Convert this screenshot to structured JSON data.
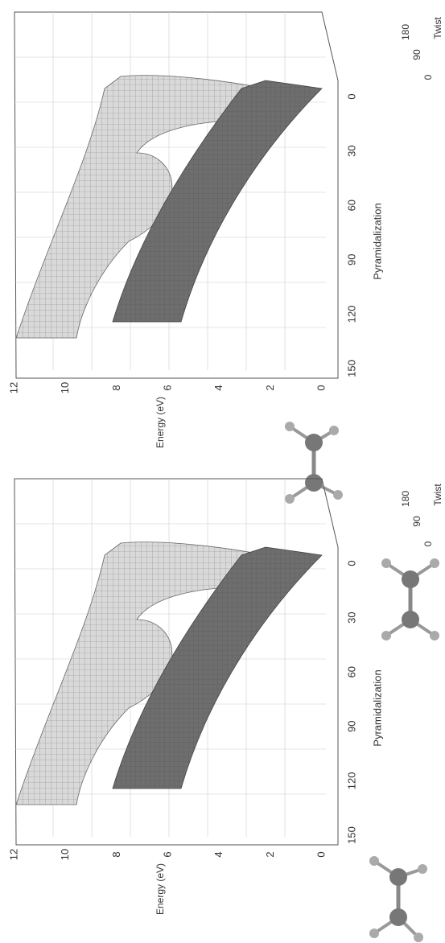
{
  "panels": [
    {
      "energy_axis": {
        "label": "Energy (eV)",
        "ticks": [
          "12",
          "10",
          "8",
          "6",
          "4",
          "2",
          "0"
        ]
      },
      "pyramidalization_axis": {
        "label": "Pyramidalization",
        "ticks": [
          "150",
          "120",
          "90",
          "60",
          "30",
          "0"
        ]
      },
      "twist_axis": {
        "label": "Twist",
        "ticks": [
          "180",
          "90",
          "0"
        ]
      }
    },
    {
      "energy_axis": {
        "label": "Energy (eV)",
        "ticks": [
          "12",
          "10",
          "8",
          "6",
          "4",
          "2",
          "0"
        ]
      },
      "pyramidalization_axis": {
        "label": "Pyramidalization",
        "ticks": [
          "150",
          "120",
          "90",
          "60",
          "30",
          "0"
        ]
      },
      "twist_axis": {
        "label": "Twist",
        "ticks": [
          "180",
          "90",
          "0"
        ]
      }
    }
  ]
}
